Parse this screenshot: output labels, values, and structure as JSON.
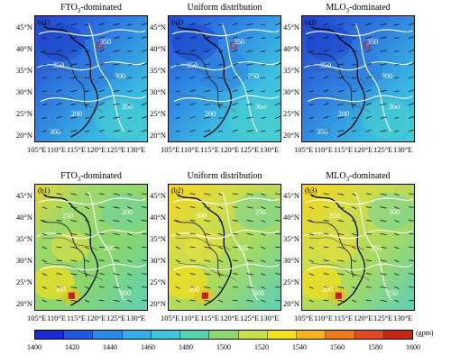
{
  "panels": [
    {
      "title_main": "FTO",
      "title_sub": "3",
      "title_rest": "-dominated",
      "label": "(a1)",
      "contour_labels": [
        "350",
        "300",
        "200",
        "350",
        "350",
        "300"
      ]
    },
    {
      "title_main": "Uniform distribution",
      "title_sub": "",
      "title_rest": "",
      "label": "(a2)",
      "contour_labels": [
        "350",
        "250",
        "200",
        "350",
        "300"
      ]
    },
    {
      "title_main": "MLO",
      "title_sub": "3",
      "title_rest": "-dominated",
      "label": "(a3)",
      "contour_labels": [
        "350",
        "300",
        "200",
        "350",
        "300",
        "350"
      ]
    },
    {
      "title_main": "FTO",
      "title_sub": "3",
      "title_rest": "-dominated",
      "label": "(b1)",
      "contour_labels": [
        "250",
        "200",
        "300",
        "200",
        "300"
      ]
    },
    {
      "title_main": "Uniform distribution",
      "title_sub": "",
      "title_rest": "",
      "label": "(b2)",
      "contour_labels": [
        "300",
        "350",
        "200",
        "250",
        "300"
      ]
    },
    {
      "title_main": "MLO",
      "title_sub": "3",
      "title_rest": "-dominated",
      "label": "(b3)",
      "contour_labels": [
        "350",
        "250",
        "200",
        "300",
        "250"
      ]
    }
  ],
  "lat_labels": [
    "45°N",
    "40°N",
    "35°N",
    "30°N",
    "25°N",
    "20°N"
  ],
  "lon_labels": [
    "105°E",
    "110°E",
    "115°E",
    "120°E",
    "125°E",
    "130°E"
  ],
  "colorbar": {
    "ticks": [
      "1400",
      "1420",
      "1440",
      "1460",
      "1480",
      "1500",
      "1520",
      "1540",
      "1560",
      "1580",
      "1600"
    ],
    "unit": "(gpm)",
    "colors": [
      "#1a2ad4",
      "#1f5ae6",
      "#2a8ae8",
      "#33aee6",
      "#3cc6dc",
      "#56d0b0",
      "#8fd870",
      "#c9e04a",
      "#f6e21a",
      "#f7b21a",
      "#ef7a1e",
      "#e2481e",
      "#c42414"
    ]
  }
}
